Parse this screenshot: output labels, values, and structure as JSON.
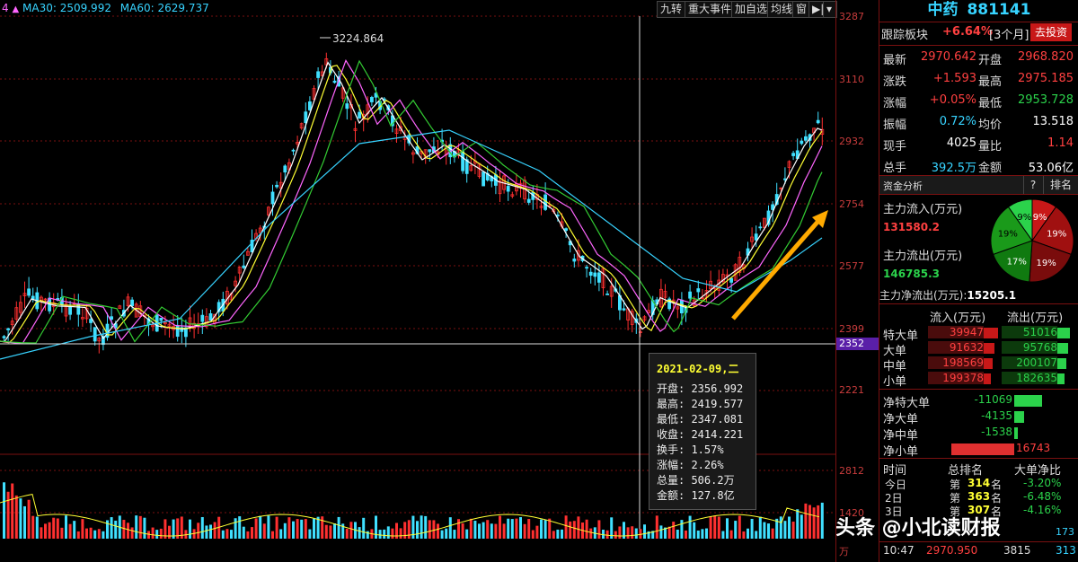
{
  "ma_legend": {
    "prefix": "4",
    "ma30_label": "MA30:",
    "ma30_value": "2509.992",
    "ma60_label": "MA60:",
    "ma60_value": "2629.737"
  },
  "toolbar": {
    "nine_turn": "九转",
    "major_events": "重大事件",
    "add_self": "加自选",
    "avg_line": "均线",
    "window": "窗",
    "flag": "▶|",
    "dropdown": "▾"
  },
  "price_axis": [
    "3287",
    "3110",
    "2932",
    "2754",
    "2577",
    "2399",
    "2221"
  ],
  "cursor_price": "2352",
  "volume_axis": [
    "2812",
    "1420"
  ],
  "volume_unit": "万",
  "high_marker": "3224.864",
  "tooltip": {
    "date": "2021-02-09,二",
    "open": "开盘: 2356.992",
    "high": "最高: 2419.577",
    "low": "最低: 2347.081",
    "close": "收盘: 2414.221",
    "turnover": "换手: 1.57%",
    "change": "涨幅: 2.26%",
    "volume": "总量: 506.2万",
    "amount": "金额: 127.8亿"
  },
  "panel": {
    "name": "中药",
    "code": "881141",
    "track_label": "跟踪板块",
    "track_pct": "+6.64%",
    "track_period": "[3个月]",
    "invest_button": "去投资",
    "quote": [
      {
        "l1": "最新",
        "v1": "2970.642",
        "l2": "开盘",
        "v2": "2968.820"
      },
      {
        "l1": "涨跌",
        "v1": "+1.593",
        "l2": "最高",
        "v2": "2975.185"
      },
      {
        "l1": "涨幅",
        "v1": "+0.05%",
        "l2": "最低",
        "v2": "2953.728"
      },
      {
        "l1": "振幅",
        "v1": "0.72%",
        "l2": "均价",
        "v2": "13.518"
      },
      {
        "l1": "现手",
        "v1": "4025",
        "l2": "量比",
        "v2": "1.14"
      },
      {
        "l1": "总手",
        "v1": "392.5万",
        "l2": "金额",
        "v2": "53.06亿"
      }
    ],
    "fund_title": "资金分析",
    "help": "?",
    "rank": "排名",
    "main_in_label": "主力流入(万元)",
    "main_in_value": "131580.2",
    "main_out_label": "主力流出(万元)",
    "main_out_value": "146785.3",
    "main_net_label": "主力净流出(万元):",
    "main_net_value": "15205.1",
    "pie": [
      {
        "label": "9%",
        "value": 9,
        "color": "#c81818"
      },
      {
        "label": "19%",
        "value": 19,
        "color": "#a01010"
      },
      {
        "label": "19%",
        "value": 19,
        "color": "#7a0c0c"
      },
      {
        "label": "17%",
        "value": 17,
        "color": "#107a10"
      },
      {
        "label": "19%",
        "value": 19,
        "color": "#1a9a1a"
      },
      {
        "label": "9%",
        "value": 9,
        "color": "#2bd24b"
      }
    ],
    "flow_header_in": "流入(万元)",
    "flow_header_out": "流出(万元)",
    "flows": [
      {
        "label": "特大单",
        "in": "39947",
        "out": "51016"
      },
      {
        "label": "大单",
        "in": "91632",
        "out": "95768"
      },
      {
        "label": "中单",
        "in": "198569",
        "out": "200107"
      },
      {
        "label": "小单",
        "in": "199378",
        "out": "182635"
      }
    ],
    "nets": [
      {
        "label": "净特大单",
        "value": "-11069",
        "amount": -11069
      },
      {
        "label": "净大单",
        "value": "-4135",
        "amount": -4135
      },
      {
        "label": "净中单",
        "value": "-1538",
        "amount": -1538
      },
      {
        "label": "净小单",
        "value": "16743",
        "amount": 16743
      }
    ],
    "rank_headers": {
      "time": "时间",
      "rank": "总排名",
      "net": "大单净比"
    },
    "rank_rows": [
      {
        "time": "今日",
        "pre": "第",
        "num": "314",
        "suf": "名",
        "net": "-3.20%"
      },
      {
        "time": "2日",
        "pre": "第",
        "num": "363",
        "suf": "名",
        "net": "-6.48%"
      },
      {
        "time": "3日",
        "pre": "第",
        "num": "307",
        "suf": "名",
        "net": "-4.16%"
      }
    ],
    "bottom_time": "10:47",
    "bottom_price": "2970.950",
    "bottom_vol": "3815",
    "bottom_num": "313",
    "bottom_num2": "173"
  },
  "watermark": "头条 @小北读财报",
  "colors": {
    "up": "#ff4040",
    "down": "#2bd24b",
    "ma_white": "#ffffff",
    "ma_yellow": "#ffff33",
    "ma_pink": "#ff66ff",
    "ma_green": "#33cc33",
    "ma30": "#37d3ff",
    "arrow": "#ffaa00"
  }
}
